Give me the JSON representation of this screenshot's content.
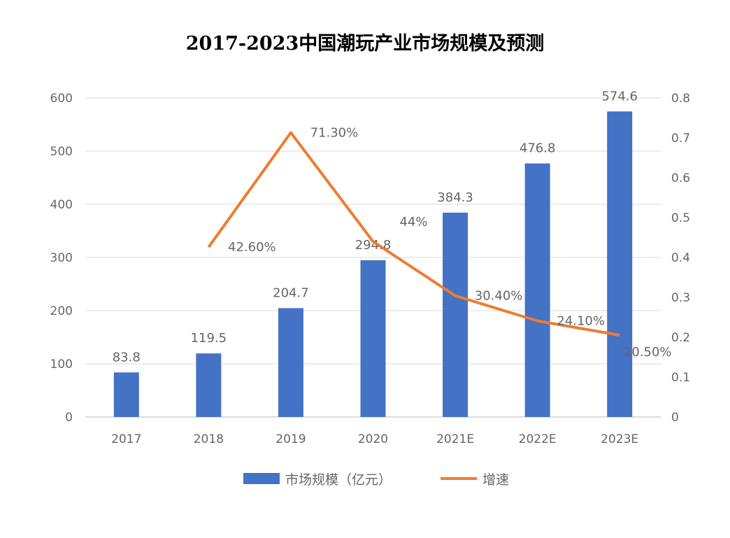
{
  "chart_data": {
    "type": "bar",
    "title": "2017-2023中国潮玩产业市场规模及预测",
    "categories": [
      "2017",
      "2018",
      "2019",
      "2020",
      "2021E",
      "2022E",
      "2023E"
    ],
    "series": [
      {
        "name": "市场规模（亿元）",
        "type": "bar",
        "axis": "left",
        "color": "#4472C4",
        "values": [
          83.8,
          119.5,
          204.7,
          294.8,
          384.3,
          476.8,
          574.6
        ],
        "labels": [
          "83.8",
          "119.5",
          "204.7",
          "294.8",
          "384.3",
          "476.8",
          "574.6"
        ]
      },
      {
        "name": "增速",
        "type": "line",
        "axis": "right",
        "color": "#ED7D31",
        "values": [
          null,
          0.426,
          0.713,
          0.44,
          0.304,
          0.241,
          0.205
        ],
        "labels": [
          "",
          "42.60%",
          "71.30%",
          "44%",
          "30.40%",
          "24.10%",
          "20.50%"
        ]
      }
    ],
    "ylim": [
      0,
      600
    ],
    "yticks": [
      "0",
      "100",
      "200",
      "300",
      "400",
      "500",
      "600"
    ],
    "y2lim": [
      0,
      0.8
    ],
    "y2ticks": [
      "0",
      "0.1",
      "0.2",
      "0.3",
      "0.4",
      "0.5",
      "0.6",
      "0.7",
      "0.8"
    ],
    "grid": true,
    "legend": "bottom"
  }
}
